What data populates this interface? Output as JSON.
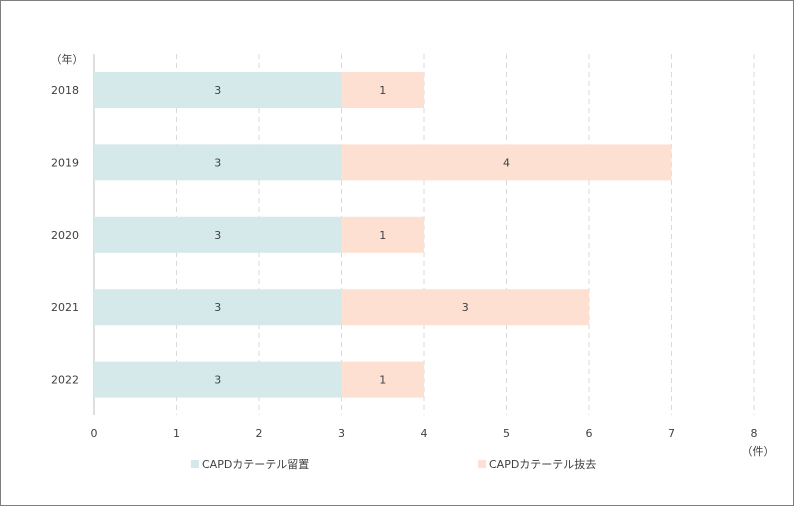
{
  "chart_data": {
    "type": "bar",
    "orientation": "horizontal",
    "stacked": true,
    "categories": [
      "2018",
      "2019",
      "2020",
      "2021",
      "2022"
    ],
    "series": [
      {
        "name": "CAPDカテーテル留置",
        "values": [
          3,
          3,
          3,
          3,
          3
        ],
        "color": "#d6e9ea"
      },
      {
        "name": "CAPDカテーテル抜去",
        "values": [
          1,
          4,
          1,
          3,
          1
        ],
        "color": "#fde0d2"
      }
    ],
    "xlim": [
      0,
      8
    ],
    "xticks": [
      "0",
      "1",
      "2",
      "3",
      "4",
      "5",
      "6",
      "7",
      "8"
    ],
    "ylabel": "（年）",
    "xlabel": "（件）",
    "grid": "vertical-dashed",
    "legend_position": "bottom"
  }
}
